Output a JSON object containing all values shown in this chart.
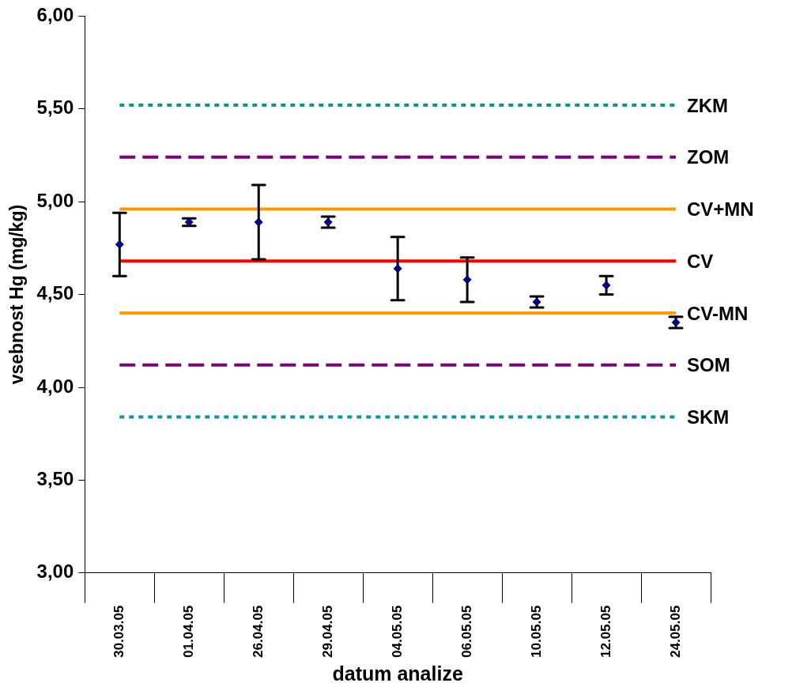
{
  "chart_data": {
    "type": "scatter",
    "xlabel": "datum analize",
    "ylabel": "vsebnost Hg (mg/kg)",
    "categories": [
      "30.03.05",
      "01.04.05",
      "26.04.05",
      "29.04.05",
      "04.05.05",
      "06.05.05",
      "10.05.05",
      "12.05.05",
      "24.05.05"
    ],
    "values": [
      4.77,
      4.89,
      4.89,
      4.89,
      4.64,
      4.58,
      4.46,
      4.55,
      4.35
    ],
    "errors": [
      0.17,
      0.02,
      0.2,
      0.03,
      0.17,
      0.12,
      0.03,
      0.05,
      0.03
    ],
    "color": "#000080",
    "marker": "diamond",
    "legend": false,
    "grid": false,
    "ylim": [
      3,
      6
    ],
    "yticks": [
      {
        "value": 3,
        "label": "3,00"
      },
      {
        "value": 3.5,
        "label": "3,50"
      },
      {
        "value": 4,
        "label": "4,00"
      },
      {
        "value": 4.5,
        "label": "4,50"
      },
      {
        "value": 5,
        "label": "5,00"
      },
      {
        "value": 5.5,
        "label": "5,50"
      },
      {
        "value": 6,
        "label": "6,00"
      }
    ],
    "ref_lines": [
      {
        "axis": "y",
        "value": 5.52,
        "label": "ZKM",
        "color": "#009999",
        "line_style": "dotted"
      },
      {
        "axis": "y",
        "value": 5.24,
        "label": "ZOM",
        "color": "#800080",
        "line_style": "dashed"
      },
      {
        "axis": "y",
        "value": 4.96,
        "label": "CV+MN",
        "color": "#ff9900",
        "line_style": "solid"
      },
      {
        "axis": "y",
        "value": 4.68,
        "label": "CV",
        "color": "#ff0000",
        "line_style": "solid"
      },
      {
        "axis": "y",
        "value": 4.4,
        "label": "CV-MN",
        "color": "#ff9900",
        "line_style": "solid"
      },
      {
        "axis": "y",
        "value": 4.12,
        "label": "SOM",
        "color": "#800080",
        "line_style": "dashed"
      },
      {
        "axis": "y",
        "value": 3.84,
        "label": "SKM",
        "color": "#009999",
        "line_style": "dotted"
      }
    ]
  }
}
